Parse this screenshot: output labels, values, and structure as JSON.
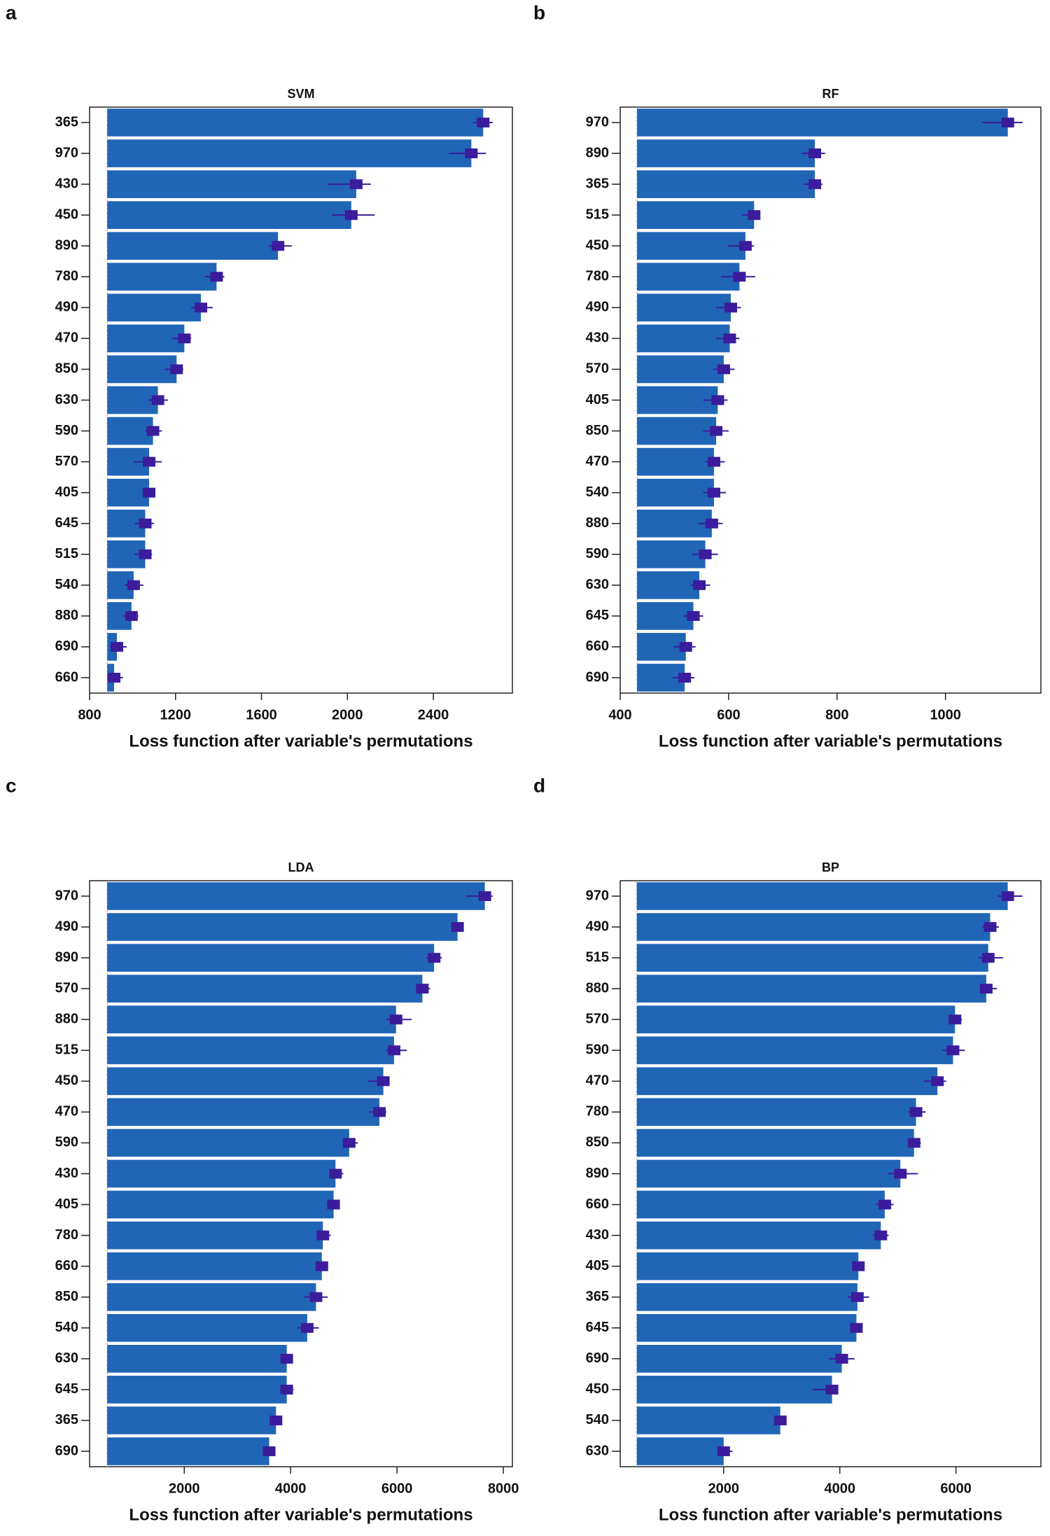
{
  "chart_data": [
    {
      "type": "bar",
      "panel": "a",
      "title": "SVM",
      "xlabel": "Loss function after variable's permutations",
      "categories": [
        "365",
        "970",
        "430",
        "450",
        "890",
        "780",
        "490",
        "470",
        "850",
        "630",
        "590",
        "570",
        "405",
        "645",
        "515",
        "540",
        "880",
        "690",
        "660"
      ],
      "values": [
        2632,
        2577,
        2041,
        2018,
        1677,
        1391,
        1318,
        1241,
        1205,
        1118,
        1095,
        1077,
        1077,
        1059,
        1059,
        1005,
        995,
        927,
        914
      ],
      "err_low": [
        2586,
        2473,
        1909,
        1927,
        1632,
        1336,
        1273,
        1182,
        1150,
        1073,
        1059,
        1005,
        1045,
        1009,
        1009,
        964,
        955,
        895,
        882
      ],
      "err_high": [
        2677,
        2645,
        2109,
        2127,
        1741,
        1427,
        1373,
        1273,
        1236,
        1164,
        1136,
        1136,
        1100,
        1100,
        1091,
        1050,
        1027,
        973,
        955
      ],
      "baseline": 882,
      "xlim": [
        800,
        2768
      ],
      "xticks": [
        800,
        1200,
        1600,
        2000,
        2400
      ],
      "color": "#2166b6",
      "err_color": "#3b1c9c"
    },
    {
      "type": "bar",
      "panel": "b",
      "title": "RF",
      "xlabel": "Loss function after variable's permutations",
      "categories": [
        "970",
        "890",
        "365",
        "515",
        "450",
        "780",
        "490",
        "430",
        "570",
        "405",
        "850",
        "470",
        "540",
        "880",
        "590",
        "630",
        "645",
        "660",
        "690"
      ],
      "values": [
        1115,
        759,
        759,
        647,
        631,
        620,
        604,
        602,
        591,
        580,
        577,
        573,
        573,
        569,
        557,
        546,
        535,
        521,
        519
      ],
      "err_low": [
        1068,
        735,
        739,
        625,
        598,
        586,
        577,
        577,
        571,
        553,
        553,
        557,
        553,
        544,
        533,
        530,
        517,
        499,
        497
      ],
      "err_high": [
        1142,
        778,
        773,
        658,
        647,
        649,
        623,
        620,
        611,
        598,
        600,
        593,
        595,
        589,
        580,
        566,
        553,
        539,
        537
      ],
      "baseline": 431,
      "xlim": [
        400,
        1176
      ],
      "xticks": [
        400,
        600,
        800,
        1000
      ],
      "color": "#2166b6",
      "err_color": "#3b1c9c"
    },
    {
      "type": "bar",
      "panel": "c",
      "title": "LDA",
      "xlabel": "Loss function after variable's permutations",
      "categories": [
        "970",
        "490",
        "890",
        "570",
        "880",
        "515",
        "450",
        "470",
        "590",
        "430",
        "405",
        "780",
        "660",
        "850",
        "540",
        "630",
        "645",
        "365",
        "690"
      ],
      "values": [
        7652,
        7138,
        6698,
        6477,
        5982,
        5945,
        5743,
        5670,
        5101,
        4844,
        4808,
        4606,
        4587,
        4477,
        4312,
        3927,
        3927,
        3725,
        3597
      ],
      "err_low": [
        7303,
        7028,
        6551,
        6367,
        5798,
        5798,
        5450,
        5468,
        4991,
        4734,
        4679,
        4496,
        4496,
        4257,
        4129,
        3817,
        3798,
        3633,
        3523
      ],
      "err_high": [
        7799,
        7230,
        6844,
        6624,
        6276,
        6184,
        5854,
        5798,
        5266,
        4991,
        4918,
        4753,
        4698,
        4698,
        4532,
        4037,
        4055,
        3817,
        3670
      ],
      "baseline": 550,
      "xlim": [
        220,
        8170
      ],
      "xticks": [
        2000,
        4000,
        6000,
        8000
      ],
      "color": "#2166b6",
      "err_color": "#3b1c9c"
    },
    {
      "type": "bar",
      "panel": "d",
      "title": "BP",
      "xlabel": "Loss function after variable's permutations",
      "categories": [
        "970",
        "490",
        "515",
        "880",
        "570",
        "590",
        "470",
        "780",
        "850",
        "890",
        "660",
        "430",
        "405",
        "365",
        "645",
        "690",
        "450",
        "540",
        "630"
      ],
      "values": [
        6892,
        6589,
        6556,
        6522,
        5984,
        5950,
        5681,
        5312,
        5278,
        5043,
        4774,
        4706,
        4320,
        4303,
        4286,
        4034,
        3866,
        2975,
        2000
      ],
      "err_low": [
        6724,
        6455,
        6387,
        6404,
        5866,
        5765,
        5446,
        5177,
        5177,
        4824,
        4622,
        4572,
        4236,
        4135,
        4185,
        3815,
        3530,
        2891,
        1899
      ],
      "err_high": [
        7144,
        6740,
        6808,
        6707,
        6102,
        6152,
        5833,
        5480,
        5396,
        5345,
        4925,
        4841,
        4421,
        4505,
        4387,
        4253,
        3967,
        3076,
        2151
      ],
      "baseline": 504,
      "xlim": [
        218,
        7463
      ],
      "xticks": [
        2000,
        4000,
        6000
      ],
      "color": "#2166b6",
      "err_color": "#3b1c9c"
    }
  ]
}
